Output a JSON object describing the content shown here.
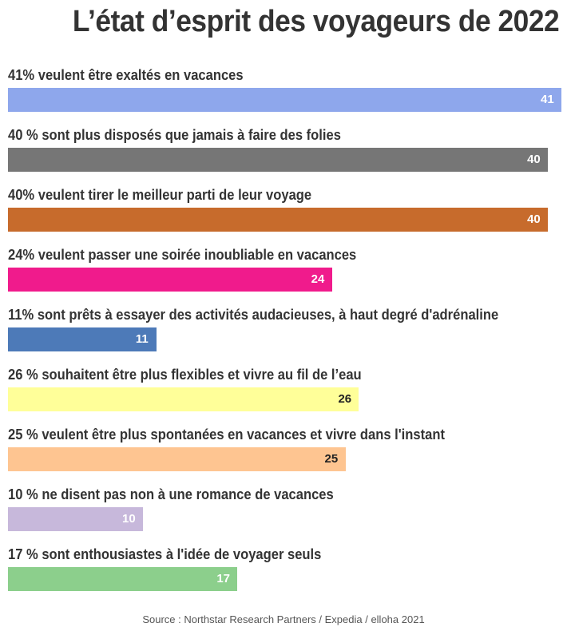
{
  "chart_data": {
    "type": "bar",
    "orientation": "horizontal",
    "title": "L’état d’esprit des voyageurs de 2022",
    "categories": [
      "41% veulent être exaltés en vacances",
      "40 % sont plus disposés que jamais à faire des folies",
      "40% veulent tirer le meilleur parti de leur voyage",
      "24% veulent passer une soirée inoubliable en vacances",
      "11% sont prêts à essayer des activités audacieuses, à haut degré d'adrénaline",
      "26 % souhaitent être plus flexibles et vivre au fil de l’eau",
      "25 % veulent être plus spontanées en vacances et vivre dans l'instant",
      "10 % ne disent pas non à une romance de vacances",
      "17 % sont enthousiastes à l'idée de voyager seuls"
    ],
    "values": [
      41,
      40,
      40,
      24,
      11,
      26,
      25,
      10,
      17
    ],
    "value_labels": [
      "41",
      "40",
      "40",
      "24",
      "11",
      "26",
      "25",
      "10",
      "17"
    ],
    "colors": [
      "#8ea7ec",
      "#767676",
      "#c76b2c",
      "#f01b8c",
      "#4d7ab8",
      "#ffff99",
      "#fec591",
      "#c7b8db",
      "#8ccf8c"
    ],
    "label_colors": [
      "#ffffff",
      "#ffffff",
      "#ffffff",
      "#ffffff",
      "#ffffff",
      "#222222",
      "#222222",
      "#ffffff",
      "#ffffff"
    ],
    "xlim": [
      0,
      41
    ],
    "grid": false,
    "source": "Source : Northstar Research Partners / Expedia / elloha 2021"
  }
}
